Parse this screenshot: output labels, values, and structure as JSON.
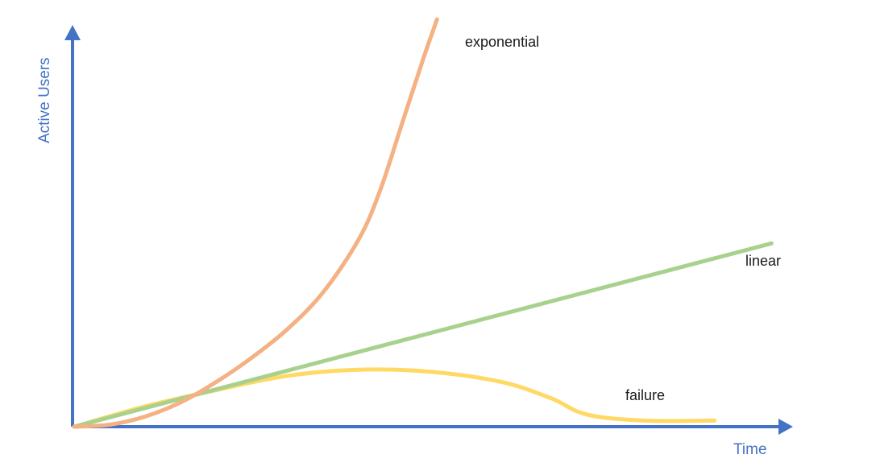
{
  "chart_data": {
    "type": "line",
    "title": "",
    "xlabel": "Time",
    "ylabel": "Active Users",
    "xlim": [
      0,
      100
    ],
    "ylim": [
      0,
      100
    ],
    "grid": false,
    "legend": "none",
    "colors": {
      "axis": "#4472c4",
      "exponential": "#f4b183",
      "linear": "#a9d18e",
      "failure": "#ffd966"
    },
    "series": [
      {
        "name": "exponential",
        "label": "exponential",
        "points": [
          [
            0,
            0
          ],
          [
            5,
            0.5
          ],
          [
            10,
            2.5
          ],
          [
            15,
            6
          ],
          [
            20,
            11
          ],
          [
            25,
            17
          ],
          [
            30,
            24
          ],
          [
            35,
            33
          ],
          [
            40,
            46
          ],
          [
            43,
            58
          ],
          [
            46,
            74
          ],
          [
            49,
            90
          ],
          [
            51,
            100
          ]
        ]
      },
      {
        "name": "linear",
        "label": "linear",
        "points": [
          [
            0,
            0
          ],
          [
            98,
            45
          ]
        ]
      },
      {
        "name": "failure",
        "label": "failure",
        "points": [
          [
            0,
            0
          ],
          [
            10,
            5
          ],
          [
            20,
            9
          ],
          [
            30,
            12.5
          ],
          [
            40,
            14
          ],
          [
            50,
            13.5
          ],
          [
            60,
            11
          ],
          [
            67,
            7
          ],
          [
            72,
            3
          ],
          [
            80,
            1.5
          ],
          [
            90,
            1.5
          ]
        ]
      }
    ]
  }
}
